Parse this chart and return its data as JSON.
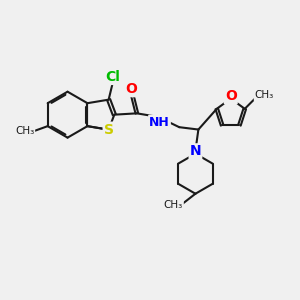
{
  "bg_color": "#f0f0f0",
  "bond_color": "#1a1a1a",
  "bond_width": 1.5,
  "atoms": {
    "S": {
      "color": "#cccc00"
    },
    "N": {
      "color": "#0000ff"
    },
    "O": {
      "color": "#ff0000"
    },
    "Cl": {
      "color": "#00bb00"
    },
    "C": {
      "color": "#1a1a1a"
    }
  },
  "figsize": [
    3.0,
    3.0
  ],
  "dpi": 100,
  "xlim": [
    0,
    10
  ],
  "ylim": [
    0,
    10
  ]
}
